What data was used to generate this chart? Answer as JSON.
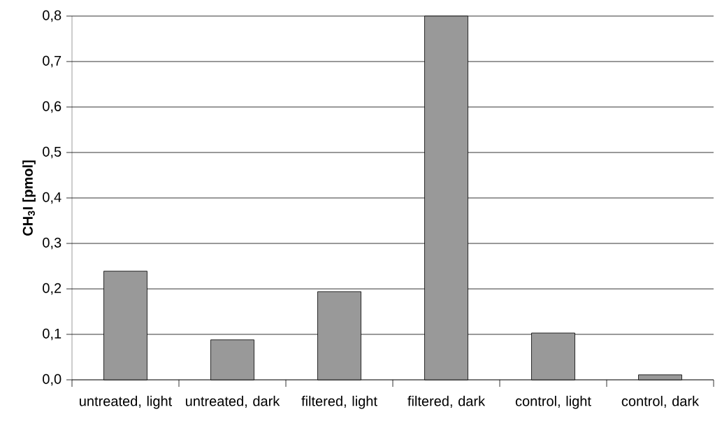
{
  "chart_data": {
    "type": "bar",
    "ylabel": "CH$_{3}$I [pmol]",
    "categories": [
      "untreated, light",
      "untreated, dark",
      "filtered, light",
      "filtered, dark",
      "control, light",
      "control, dark"
    ],
    "values": [
      0.239,
      0.088,
      0.194,
      0.8,
      0.103,
      0.011
    ],
    "color": "#999999",
    "ylim": [
      0,
      0.8
    ],
    "yticks": [
      {
        "value": 0,
        "label": "0,0"
      },
      {
        "value": 0.1,
        "label": "0,1"
      },
      {
        "value": 0.2,
        "label": "0,2"
      },
      {
        "value": 0.3,
        "label": "0,3"
      },
      {
        "value": 0.4,
        "label": "0,4"
      },
      {
        "value": 0.5,
        "label": "0,5"
      },
      {
        "value": 0.6,
        "label": "0,6"
      },
      {
        "value": 0.7,
        "label": "0,7"
      },
      {
        "value": 0.8,
        "label": "0,8"
      }
    ],
    "grid": "y"
  }
}
